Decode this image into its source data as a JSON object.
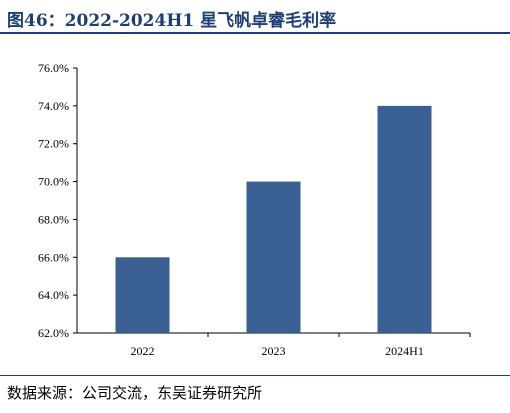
{
  "header": {
    "title": "图46：2022-2024H1 星飞帆卓睿毛利率"
  },
  "footer": {
    "source": "数据来源：公司交流，东吴证券研究所"
  },
  "chart_data": {
    "type": "bar",
    "categories": [
      "2022",
      "2023",
      "2024H1"
    ],
    "values": [
      66.0,
      70.0,
      74.0
    ],
    "unit": "%",
    "ylim": [
      62.0,
      76.0
    ],
    "yticks": [
      "62.0%",
      "64.0%",
      "66.0%",
      "68.0%",
      "70.0%",
      "72.0%",
      "74.0%",
      "76.0%"
    ],
    "ytick_values": [
      62,
      64,
      66,
      68,
      70,
      72,
      74,
      76
    ],
    "grid": false,
    "legend": "none",
    "bar_color": "#3a5f92",
    "axis_color": "#000000"
  }
}
